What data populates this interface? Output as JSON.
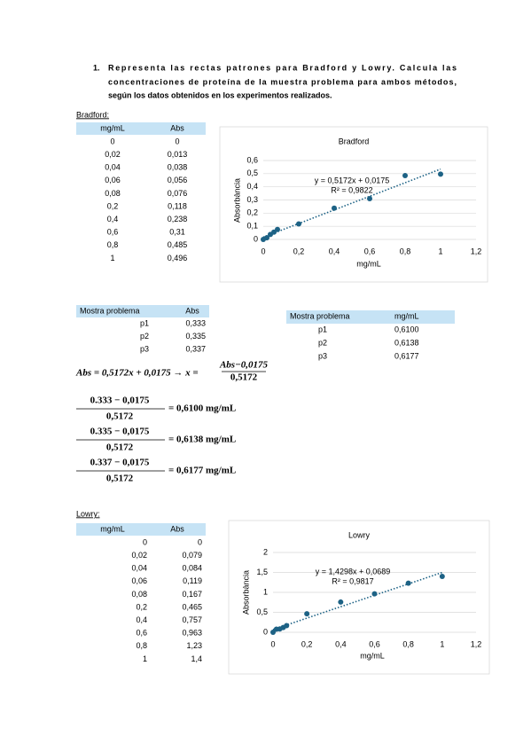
{
  "question": {
    "number": "1.",
    "lines": [
      "Representa las rectas patrones para Bradford y Lowry. Calcula las",
      "concentraciones de proteína de la muestra problema para ambos métodos,",
      "según los datos obtenidos en los experimentos realizados."
    ]
  },
  "bradford": {
    "label": "Bradford:",
    "table": {
      "headers": [
        "mg/mL",
        "Abs"
      ],
      "rows": [
        [
          "0",
          "0"
        ],
        [
          "0,02",
          "0,013"
        ],
        [
          "0,04",
          "0,038"
        ],
        [
          "0,06",
          "0,056"
        ],
        [
          "0,08",
          "0,076"
        ],
        [
          "0,2",
          "0,118"
        ],
        [
          "0,4",
          "0,238"
        ],
        [
          "0,6",
          "0,31"
        ],
        [
          "0,8",
          "0,485"
        ],
        [
          "1",
          "0,496"
        ]
      ]
    },
    "chart": {
      "type": "scatter",
      "title": "Bradford",
      "x_label": "mg/mL",
      "y_label": "Absorbància",
      "x": [
        0,
        0.02,
        0.04,
        0.06,
        0.08,
        0.2,
        0.4,
        0.6,
        0.8,
        1
      ],
      "series": [
        {
          "color": "#1d6285",
          "values": [
            0,
            0.013,
            0.038,
            0.056,
            0.076,
            0.118,
            0.238,
            0.31,
            0.485,
            0.496
          ]
        }
      ],
      "trendline": {
        "slope": 0.5172,
        "intercept": 0.0175,
        "label": "y = 0,5172x + 0,0175",
        "r2_label": "R² = 0,9822"
      },
      "xlim": [
        0,
        1.2
      ],
      "xticks": [
        0,
        {
          "value": 0.2,
          "label": "0,2"
        },
        {
          "value": 0.4,
          "label": "0,4"
        },
        {
          "value": 0.6,
          "label": "0,6"
        },
        {
          "value": 0.8,
          "label": "0,8"
        },
        1,
        {
          "value": 1.2,
          "label": "1,2"
        }
      ],
      "ylim": [
        0,
        0.6
      ],
      "yticks": [
        0,
        {
          "value": 0.1,
          "label": "0,1"
        },
        {
          "value": 0.2,
          "label": "0,2"
        },
        {
          "value": 0.3,
          "label": "0,3"
        },
        {
          "value": 0.4,
          "label": "0,4"
        },
        {
          "value": 0.5,
          "label": "0,5"
        },
        {
          "value": 0.6,
          "label": "0,6"
        }
      ],
      "grid": true
    }
  },
  "sample_abs": {
    "headers": [
      "Mostra problema",
      "Abs"
    ],
    "rows": [
      [
        "p1",
        "0,333"
      ],
      [
        "p2",
        "0,335"
      ],
      [
        "p3",
        "0,337"
      ]
    ]
  },
  "sample_conc": {
    "headers": [
      "Mostra problema",
      "mg/mL"
    ],
    "rows": [
      [
        "p1",
        "0,6100"
      ],
      [
        "p2",
        "0,6138"
      ],
      [
        "p3",
        "0,6177"
      ]
    ]
  },
  "equation": {
    "lhs": "Abs = 0,5172x + 0,0175 → x =",
    "numerator": "Abs−0,0175",
    "denominator": "0,5172"
  },
  "calculations": [
    {
      "numerator": "0.333 − 0,0175",
      "denominator": "0,5172",
      "result": "= 0,6100 mg/mL"
    },
    {
      "numerator": "0.335 − 0,0175",
      "denominator": "0,5172",
      "result": "= 0,6138 mg/mL"
    },
    {
      "numerator": "0.337 − 0,0175",
      "denominator": "0,5172",
      "result": "= 0,6177 mg/mL"
    }
  ],
  "lowry": {
    "label": "Lowry:",
    "table": {
      "headers": [
        "mg/mL",
        "Abs"
      ],
      "rows": [
        [
          "0",
          "0"
        ],
        [
          "0,02",
          "0,079"
        ],
        [
          "0,04",
          "0,084"
        ],
        [
          "0,06",
          "0,119"
        ],
        [
          "0,08",
          "0,167"
        ],
        [
          "0,2",
          "0,465"
        ],
        [
          "0,4",
          "0,757"
        ],
        [
          "0,6",
          "0,963"
        ],
        [
          "0,8",
          "1,23"
        ],
        [
          "1",
          "1,4"
        ]
      ]
    },
    "chart": {
      "type": "scatter",
      "title": "Lowry",
      "x_label": "mg/mL",
      "y_label": "Absorbància",
      "x": [
        0,
        0.02,
        0.04,
        0.06,
        0.08,
        0.2,
        0.4,
        0.6,
        0.8,
        1
      ],
      "series": [
        {
          "color": "#1d6285",
          "values": [
            0,
            0.079,
            0.084,
            0.119,
            0.167,
            0.465,
            0.757,
            0.963,
            1.23,
            1.4
          ]
        }
      ],
      "trendline": {
        "slope": 1.4298,
        "intercept": 0.0689,
        "label": "y = 1,4298x + 0,0689",
        "r2_label": "R² = 0,9817"
      },
      "xlim": [
        0,
        1.2
      ],
      "xticks": [
        0,
        {
          "value": 0.2,
          "label": "0,2"
        },
        {
          "value": 0.4,
          "label": "0,4"
        },
        {
          "value": 0.6,
          "label": "0,6"
        },
        {
          "value": 0.8,
          "label": "0,8"
        },
        1,
        {
          "value": 1.2,
          "label": "1,2"
        }
      ],
      "ylim": [
        0,
        2
      ],
      "yticks": [
        0,
        {
          "value": 0.5,
          "label": "0,5"
        },
        1,
        {
          "value": 1.5,
          "label": "1,5"
        },
        2
      ],
      "grid": true
    }
  }
}
